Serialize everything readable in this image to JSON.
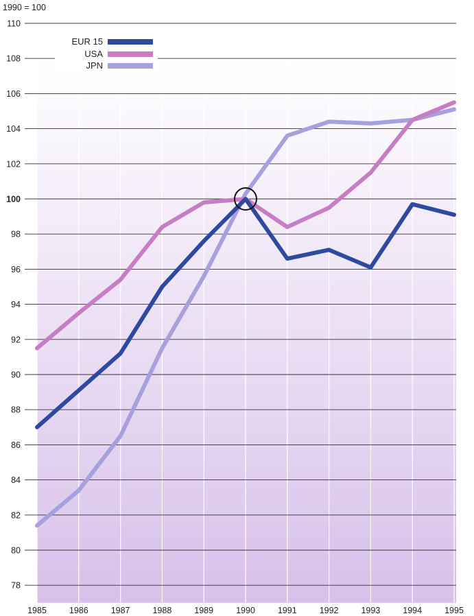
{
  "chart_data": {
    "type": "line",
    "unit_label": "1990 = 100",
    "x": [
      1985,
      1986,
      1987,
      1988,
      1989,
      1990,
      1991,
      1992,
      1993,
      1994,
      1995
    ],
    "x_tick_labels": [
      "1985",
      "1986",
      "1987",
      "1988",
      "1989",
      "1990",
      "1991",
      "1992",
      "1993",
      "1994",
      "1995"
    ],
    "ylim": [
      77,
      110
    ],
    "y_ticks": [
      78,
      80,
      82,
      84,
      86,
      88,
      90,
      92,
      94,
      96,
      98,
      100,
      102,
      104,
      106,
      108,
      110
    ],
    "y_tick_labels": [
      "78",
      "80",
      "82",
      "84",
      "86",
      "88",
      "90",
      "92",
      "94",
      "96",
      "98",
      "100",
      "102",
      "104",
      "106",
      "108",
      "110"
    ],
    "highlight_point": {
      "x": 1990,
      "y": 100
    },
    "legend_placement": "top-left",
    "grid": true,
    "background_gradient": [
      "#ffffff",
      "#d8c0ea"
    ],
    "series": [
      {
        "name": "EUR 15",
        "color": "#2e4a9e",
        "values": [
          87.0,
          89.1,
          91.2,
          95.0,
          97.6,
          100.0,
          96.6,
          97.1,
          96.1,
          99.7,
          99.1
        ]
      },
      {
        "name": "USA",
        "color": "#c77dc4",
        "values": [
          91.5,
          93.5,
          95.4,
          98.4,
          99.8,
          100.0,
          98.4,
          99.5,
          101.5,
          104.5,
          105.5
        ]
      },
      {
        "name": "JPN",
        "color": "#a6a1dc",
        "values": [
          81.4,
          83.4,
          86.5,
          91.5,
          95.6,
          100.3,
          103.6,
          104.4,
          104.3,
          104.5,
          105.1
        ]
      }
    ]
  }
}
